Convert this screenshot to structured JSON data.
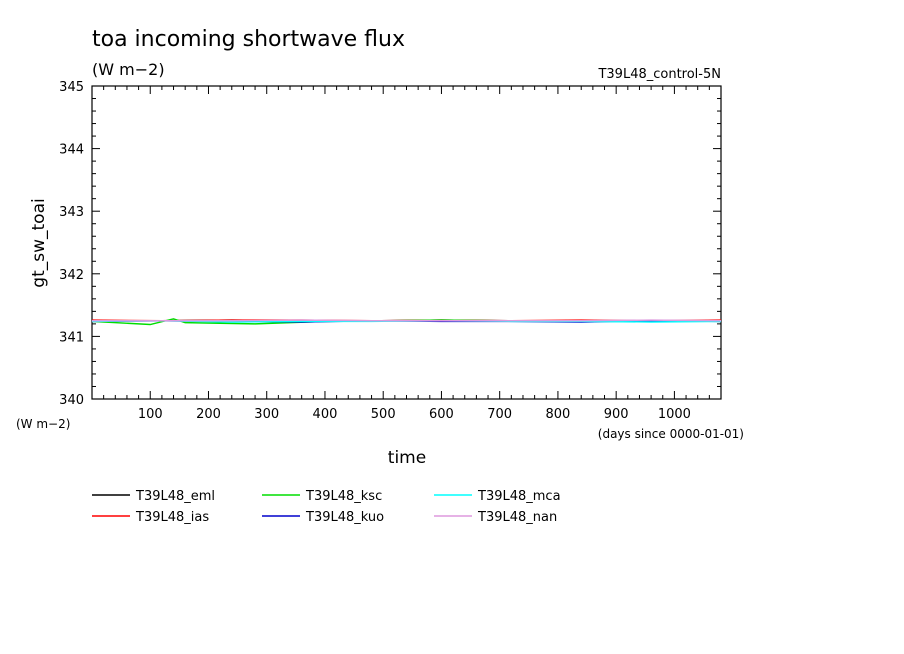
{
  "chart_data": {
    "type": "line",
    "title": "toa incoming shortwave flux",
    "units": "(W m−2)",
    "run_label": "T39L48_control-5N",
    "ylabel": "gt_sw_toai",
    "xlabel": "time",
    "y_units_label": "(W m−2)",
    "x_units_label": "(days since 0000-01-01)",
    "xlim": [
      0,
      1080
    ],
    "ylim": [
      340,
      345
    ],
    "x_ticks": [
      100,
      200,
      300,
      400,
      500,
      600,
      700,
      800,
      900,
      1000
    ],
    "y_ticks": [
      340,
      341,
      342,
      343,
      344,
      345
    ],
    "grid": false,
    "legend_position": "bottom-left",
    "series": [
      {
        "name": "T39L48_eml",
        "color": "#000000",
        "mean": 341.25,
        "x": [
          0,
          120,
          240,
          360,
          480,
          600,
          720,
          840,
          960,
          1080
        ],
        "values": [
          341.25,
          341.25,
          341.26,
          341.25,
          341.25,
          341.26,
          341.25,
          341.25,
          341.25,
          341.25
        ]
      },
      {
        "name": "T39L48_ias",
        "color": "#ff0000",
        "mean": 341.26,
        "x": [
          0,
          120,
          240,
          360,
          480,
          600,
          720,
          840,
          960,
          1080
        ],
        "values": [
          341.26,
          341.25,
          341.26,
          341.26,
          341.25,
          341.26,
          341.25,
          341.26,
          341.25,
          341.26
        ]
      },
      {
        "name": "T39L48_ksc",
        "color": "#00dd00",
        "mean": 341.24,
        "x": [
          0,
          100,
          140,
          160,
          280,
          400,
          600,
          800,
          1000,
          1080
        ],
        "values": [
          341.24,
          341.19,
          341.28,
          341.22,
          341.2,
          341.24,
          341.26,
          341.24,
          341.25,
          341.24
        ]
      },
      {
        "name": "T39L48_kuo",
        "color": "#0000cc",
        "mean": 341.24,
        "x": [
          0,
          120,
          240,
          360,
          480,
          600,
          720,
          840,
          960,
          1080
        ],
        "values": [
          341.24,
          341.25,
          341.24,
          341.23,
          341.25,
          341.24,
          341.24,
          341.23,
          341.25,
          341.24
        ]
      },
      {
        "name": "T39L48_mca",
        "color": "#00ffff",
        "mean": 341.24,
        "x": [
          0,
          120,
          240,
          360,
          480,
          600,
          720,
          840,
          960,
          1080
        ],
        "values": [
          341.24,
          341.25,
          341.23,
          341.24,
          341.24,
          341.25,
          341.24,
          341.24,
          341.23,
          341.24
        ]
      },
      {
        "name": "T39L48_nan",
        "color": "#dd99dd",
        "mean": 341.25,
        "x": [
          0,
          120,
          240,
          360,
          480,
          600,
          720,
          840,
          960,
          1080
        ],
        "values": [
          341.25,
          341.25,
          341.25,
          341.26,
          341.25,
          341.25,
          341.25,
          341.25,
          341.26,
          341.25
        ]
      }
    ]
  }
}
